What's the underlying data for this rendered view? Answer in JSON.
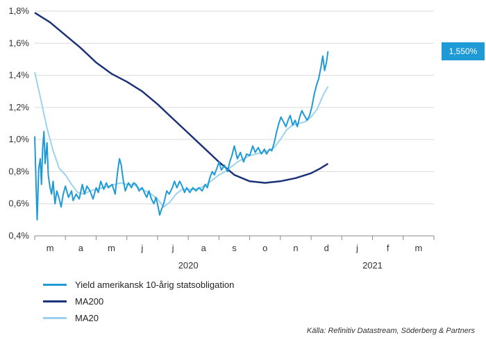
{
  "chart_data": {
    "type": "line",
    "y_ticks": [
      "0,4%",
      "0,6%",
      "0,8%",
      "1,0%",
      "1,2%",
      "1,4%",
      "1,6%",
      "1,8%"
    ],
    "ylim": [
      0.4,
      1.8
    ],
    "month_labels": [
      "m",
      "a",
      "m",
      "j",
      "j",
      "a",
      "s",
      "o",
      "n",
      "d",
      "j",
      "f",
      "m"
    ],
    "year_labels": [
      "2020",
      "2021"
    ],
    "grid": "horizontal",
    "legend_position": "bottom-left",
    "end_label": "1,550%",
    "series": [
      {
        "name": "Yield amerikansk 10-årig statsobligation",
        "color": "#1E9AD6",
        "points": [
          [
            0.0,
            1.02
          ],
          [
            0.04,
            0.74
          ],
          [
            0.08,
            0.5
          ],
          [
            0.13,
            0.82
          ],
          [
            0.18,
            0.88
          ],
          [
            0.22,
            0.72
          ],
          [
            0.26,
            0.95
          ],
          [
            0.3,
            1.05
          ],
          [
            0.34,
            0.85
          ],
          [
            0.4,
            0.98
          ],
          [
            0.44,
            0.78
          ],
          [
            0.5,
            0.7
          ],
          [
            0.55,
            0.66
          ],
          [
            0.6,
            0.74
          ],
          [
            0.66,
            0.6
          ],
          [
            0.72,
            0.68
          ],
          [
            0.8,
            0.63
          ],
          [
            0.86,
            0.58
          ],
          [
            0.93,
            0.66
          ],
          [
            1.0,
            0.71
          ],
          [
            1.1,
            0.64
          ],
          [
            1.2,
            0.68
          ],
          [
            1.25,
            0.62
          ],
          [
            1.35,
            0.66
          ],
          [
            1.45,
            0.63
          ],
          [
            1.55,
            0.72
          ],
          [
            1.62,
            0.66
          ],
          [
            1.7,
            0.71
          ],
          [
            1.8,
            0.68
          ],
          [
            1.9,
            0.63
          ],
          [
            2.0,
            0.7
          ],
          [
            2.07,
            0.67
          ],
          [
            2.15,
            0.74
          ],
          [
            2.25,
            0.69
          ],
          [
            2.33,
            0.73
          ],
          [
            2.4,
            0.7
          ],
          [
            2.52,
            0.72
          ],
          [
            2.62,
            0.66
          ],
          [
            2.7,
            0.8
          ],
          [
            2.76,
            0.88
          ],
          [
            2.82,
            0.84
          ],
          [
            2.88,
            0.75
          ],
          [
            2.95,
            0.68
          ],
          [
            3.05,
            0.73
          ],
          [
            3.15,
            0.7
          ],
          [
            3.22,
            0.73
          ],
          [
            3.3,
            0.72
          ],
          [
            3.4,
            0.68
          ],
          [
            3.5,
            0.7
          ],
          [
            3.57,
            0.67
          ],
          [
            3.65,
            0.64
          ],
          [
            3.72,
            0.68
          ],
          [
            3.8,
            0.63
          ],
          [
            3.88,
            0.6
          ],
          [
            3.95,
            0.64
          ],
          [
            4.02,
            0.58
          ],
          [
            4.07,
            0.53
          ],
          [
            4.12,
            0.56
          ],
          [
            4.2,
            0.6
          ],
          [
            4.3,
            0.68
          ],
          [
            4.38,
            0.66
          ],
          [
            4.48,
            0.7
          ],
          [
            4.55,
            0.74
          ],
          [
            4.63,
            0.7
          ],
          [
            4.72,
            0.74
          ],
          [
            4.8,
            0.71
          ],
          [
            4.88,
            0.67
          ],
          [
            4.95,
            0.7
          ],
          [
            5.05,
            0.67
          ],
          [
            5.15,
            0.7
          ],
          [
            5.25,
            0.68
          ],
          [
            5.35,
            0.7
          ],
          [
            5.45,
            0.68
          ],
          [
            5.55,
            0.72
          ],
          [
            5.62,
            0.7
          ],
          [
            5.7,
            0.76
          ],
          [
            5.78,
            0.8
          ],
          [
            5.85,
            0.78
          ],
          [
            5.93,
            0.82
          ],
          [
            6.0,
            0.86
          ],
          [
            6.08,
            0.81
          ],
          [
            6.18,
            0.84
          ],
          [
            6.28,
            0.8
          ],
          [
            6.35,
            0.86
          ],
          [
            6.42,
            0.9
          ],
          [
            6.5,
            0.96
          ],
          [
            6.6,
            0.88
          ],
          [
            6.7,
            0.92
          ],
          [
            6.8,
            0.86
          ],
          [
            6.9,
            0.91
          ],
          [
            7.0,
            0.9
          ],
          [
            7.1,
            0.96
          ],
          [
            7.18,
            0.92
          ],
          [
            7.28,
            0.95
          ],
          [
            7.38,
            0.91
          ],
          [
            7.48,
            0.94
          ],
          [
            7.55,
            0.91
          ],
          [
            7.65,
            0.94
          ],
          [
            7.72,
            0.93
          ],
          [
            7.8,
            0.98
          ],
          [
            7.88,
            1.05
          ],
          [
            7.95,
            1.1
          ],
          [
            8.02,
            1.14
          ],
          [
            8.1,
            1.11
          ],
          [
            8.18,
            1.08
          ],
          [
            8.25,
            1.12
          ],
          [
            8.32,
            1.15
          ],
          [
            8.4,
            1.09
          ],
          [
            8.48,
            1.12
          ],
          [
            8.55,
            1.08
          ],
          [
            8.63,
            1.14
          ],
          [
            8.7,
            1.18
          ],
          [
            8.78,
            1.15
          ],
          [
            8.87,
            1.12
          ],
          [
            8.95,
            1.15
          ],
          [
            9.02,
            1.2
          ],
          [
            9.1,
            1.28
          ],
          [
            9.18,
            1.34
          ],
          [
            9.25,
            1.38
          ],
          [
            9.32,
            1.45
          ],
          [
            9.38,
            1.52
          ],
          [
            9.44,
            1.43
          ],
          [
            9.5,
            1.48
          ],
          [
            9.55,
            1.55
          ]
        ]
      },
      {
        "name": "MA200",
        "color": "#1B3278",
        "points": [
          [
            0.0,
            1.79
          ],
          [
            0.5,
            1.73
          ],
          [
            1.0,
            1.65
          ],
          [
            1.5,
            1.57
          ],
          [
            2.0,
            1.48
          ],
          [
            2.5,
            1.41
          ],
          [
            3.0,
            1.36
          ],
          [
            3.5,
            1.3
          ],
          [
            4.0,
            1.22
          ],
          [
            4.5,
            1.13
          ],
          [
            5.0,
            1.04
          ],
          [
            5.5,
            0.95
          ],
          [
            6.0,
            0.86
          ],
          [
            6.5,
            0.78
          ],
          [
            7.0,
            0.74
          ],
          [
            7.5,
            0.73
          ],
          [
            8.0,
            0.74
          ],
          [
            8.5,
            0.76
          ],
          [
            9.0,
            0.79
          ],
          [
            9.3,
            0.82
          ],
          [
            9.55,
            0.85
          ]
        ]
      },
      {
        "name": "MA20",
        "color": "#9BD3EE",
        "points": [
          [
            0.0,
            1.42
          ],
          [
            0.2,
            1.25
          ],
          [
            0.4,
            1.07
          ],
          [
            0.6,
            0.93
          ],
          [
            0.8,
            0.82
          ],
          [
            1.0,
            0.78
          ],
          [
            1.2,
            0.72
          ],
          [
            1.4,
            0.67
          ],
          [
            1.6,
            0.66
          ],
          [
            1.8,
            0.68
          ],
          [
            2.0,
            0.69
          ],
          [
            2.2,
            0.7
          ],
          [
            2.4,
            0.71
          ],
          [
            2.6,
            0.72
          ],
          [
            2.8,
            0.73
          ],
          [
            3.0,
            0.72
          ],
          [
            3.2,
            0.72
          ],
          [
            3.4,
            0.7
          ],
          [
            3.6,
            0.68
          ],
          [
            3.8,
            0.66
          ],
          [
            4.0,
            0.63
          ],
          [
            4.2,
            0.58
          ],
          [
            4.4,
            0.61
          ],
          [
            4.6,
            0.66
          ],
          [
            4.8,
            0.69
          ],
          [
            5.0,
            0.69
          ],
          [
            5.2,
            0.69
          ],
          [
            5.4,
            0.7
          ],
          [
            5.6,
            0.72
          ],
          [
            5.8,
            0.75
          ],
          [
            6.0,
            0.78
          ],
          [
            6.2,
            0.8
          ],
          [
            6.4,
            0.83
          ],
          [
            6.6,
            0.86
          ],
          [
            6.8,
            0.88
          ],
          [
            7.0,
            0.9
          ],
          [
            7.2,
            0.91
          ],
          [
            7.4,
            0.92
          ],
          [
            7.6,
            0.93
          ],
          [
            7.8,
            0.95
          ],
          [
            8.0,
            1.0
          ],
          [
            8.2,
            1.06
          ],
          [
            8.4,
            1.09
          ],
          [
            8.6,
            1.1
          ],
          [
            8.8,
            1.11
          ],
          [
            9.0,
            1.14
          ],
          [
            9.2,
            1.19
          ],
          [
            9.4,
            1.28
          ],
          [
            9.55,
            1.33
          ]
        ]
      }
    ]
  },
  "source_text": "Källa: Refinitiv Datastream, Söderberg & Partners"
}
